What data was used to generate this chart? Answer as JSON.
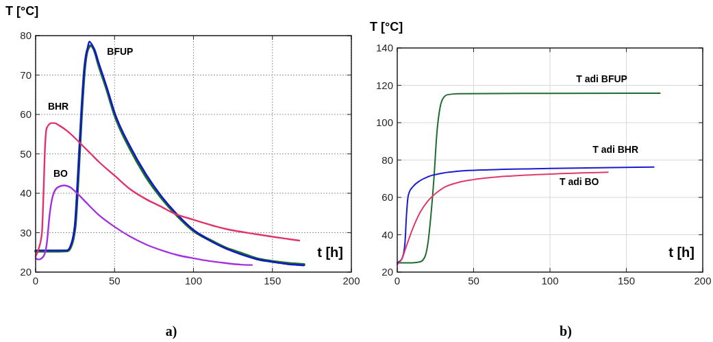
{
  "chart_data": [
    {
      "type": "line",
      "title": "a)",
      "xlabel": "t [h]",
      "ylabel": "T [°C]",
      "xlim": [
        0,
        200
      ],
      "ylim": [
        20,
        80
      ],
      "xticks": [
        0,
        50,
        100,
        150,
        200
      ],
      "yticks": [
        20,
        30,
        40,
        50,
        60,
        70,
        80
      ],
      "grid": true,
      "series": [
        {
          "color": "#1a6e2a",
          "x": [
            0,
            10,
            20,
            22,
            25,
            27,
            29,
            31,
            33,
            35,
            37,
            40,
            45,
            50,
            60,
            70,
            80,
            90,
            100,
            110,
            120,
            130,
            140,
            150,
            160,
            170
          ],
          "values": [
            25.3,
            25.3,
            25.4,
            26.2,
            31.5,
            44.5,
            59.5,
            71.5,
            76.5,
            77.5,
            76.5,
            72.5,
            66.5,
            60,
            51.2,
            44.2,
            38.7,
            34.2,
            30.5,
            28.2,
            26.2,
            24.8,
            23.4,
            22.7,
            22.2,
            21.9
          ]
        },
        {
          "name": "BFUP",
          "color": "#1414d2",
          "x": [
            0,
            10,
            20,
            22,
            25,
            27,
            29,
            31,
            33,
            34,
            36,
            40,
            45,
            50,
            60,
            70,
            80,
            90,
            100,
            110,
            120,
            130,
            140,
            150,
            160,
            170
          ],
          "values": [
            25.5,
            25.5,
            25.5,
            26.5,
            32,
            45,
            60,
            72,
            77,
            78.5,
            77.5,
            73,
            67,
            60.5,
            51.8,
            44.8,
            39.1,
            34.5,
            30.7,
            28.1,
            26.1,
            24.5,
            23.3,
            22.6,
            22,
            21.7
          ]
        },
        {
          "name": "BHR",
          "color": "#e2326a",
          "x": [
            0,
            2,
            4,
            5,
            6,
            7,
            10,
            12,
            15,
            20,
            25,
            30,
            35,
            40,
            50,
            60,
            70,
            80,
            87,
            100,
            120,
            140,
            160,
            167
          ],
          "values": [
            24,
            26,
            30,
            40,
            52,
            56.5,
            57.8,
            57.8,
            57.2,
            55.8,
            54,
            52,
            50,
            48,
            44.5,
            41,
            38.5,
            36.5,
            35,
            33.3,
            31,
            29.6,
            28.4,
            28
          ]
        },
        {
          "name": "BO",
          "color": "#a232e0",
          "x": [
            0,
            2,
            5,
            7,
            9,
            11,
            14,
            18,
            22,
            25,
            30,
            40,
            50,
            60,
            70,
            80,
            90,
            100,
            110,
            120,
            130,
            137
          ],
          "values": [
            23.5,
            23.2,
            24,
            27,
            35,
            39.5,
            41.5,
            42,
            41.5,
            40.5,
            38.5,
            34.5,
            31.5,
            29,
            27,
            25.5,
            24.3,
            23.5,
            22.8,
            22.3,
            21.9,
            21.8
          ]
        }
      ]
    },
    {
      "type": "line",
      "title": "b)",
      "xlabel": "t [h]",
      "ylabel": "T [°C]",
      "xlim": [
        0,
        200
      ],
      "ylim": [
        20,
        140
      ],
      "xticks": [
        0,
        50,
        100,
        150,
        200
      ],
      "yticks": [
        20,
        40,
        60,
        80,
        100,
        120,
        140
      ],
      "grid": true,
      "series": [
        {
          "name": "T adi BFUP",
          "color": "#1f6b2e",
          "x": [
            0,
            10,
            15,
            18,
            20,
            22,
            24,
            26,
            28,
            30,
            33,
            40,
            100,
            172
          ],
          "values": [
            25,
            25,
            25.5,
            28,
            35,
            50,
            70,
            95,
            108,
            113,
            115,
            115.5,
            115.7,
            115.8
          ]
        },
        {
          "name": "T adi BHR",
          "color": "#1a1ad0",
          "x": [
            0,
            3,
            5,
            6,
            7,
            8,
            10,
            15,
            20,
            30,
            40,
            60,
            100,
            168
          ],
          "values": [
            25,
            27,
            35,
            50,
            60,
            63,
            65.5,
            69,
            71,
            73,
            74,
            74.8,
            75.5,
            76.2
          ]
        },
        {
          "name": "T adi BO",
          "color": "#e03a6a",
          "x": [
            0,
            3,
            6,
            10,
            15,
            20,
            25,
            30,
            40,
            50,
            75,
            100,
            138
          ],
          "values": [
            24,
            27,
            34,
            43,
            52,
            58,
            62,
            65,
            68,
            69.5,
            71.5,
            72.5,
            73.5
          ]
        }
      ]
    }
  ]
}
